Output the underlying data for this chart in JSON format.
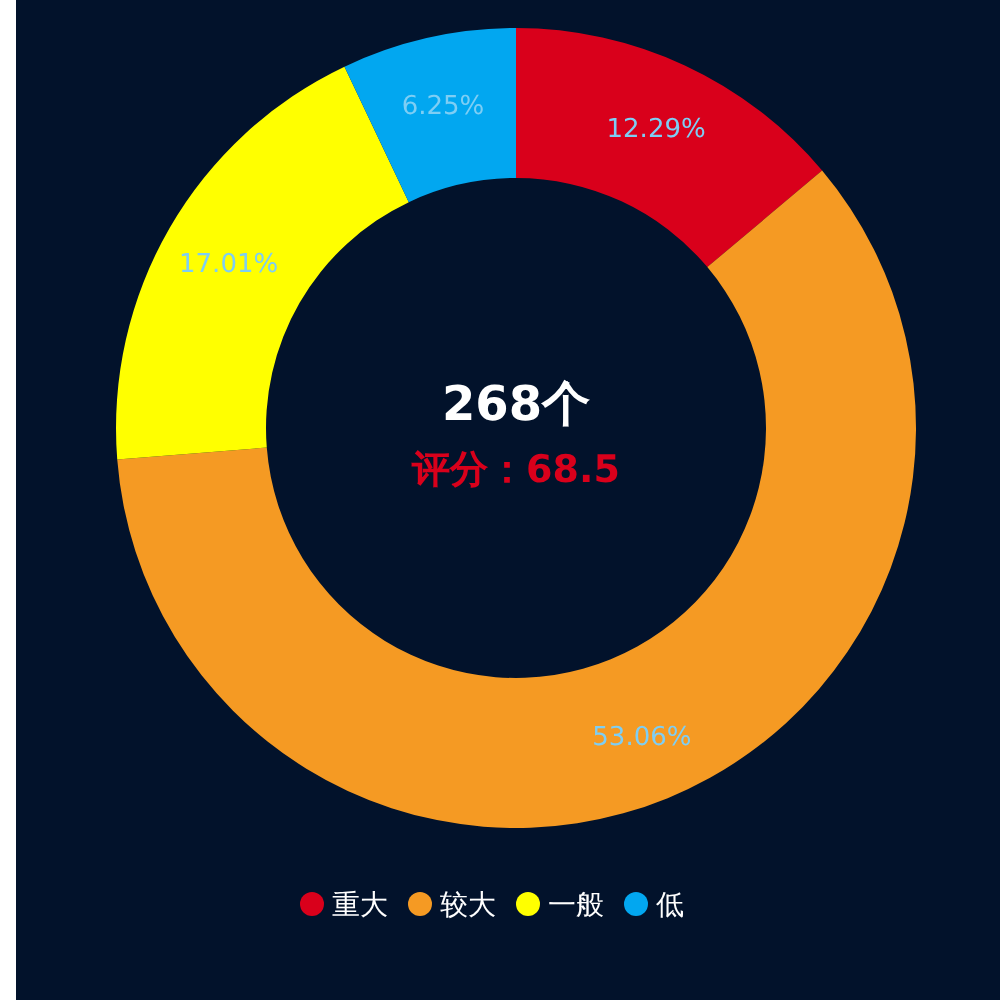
{
  "chart_data": {
    "type": "donut",
    "title": "268个",
    "subtitle": "评分：68.5",
    "categories": [
      "重大",
      "较大",
      "一般",
      "低"
    ],
    "values": [
      12.29,
      53.06,
      17.01,
      6.25
    ],
    "value_labels": [
      "12.29%",
      "53.06%",
      "17.01%",
      "6.25%"
    ],
    "colors": [
      "#d9001b",
      "#f59a23",
      "#ffff00",
      "#02a7f0"
    ],
    "legend": "bottom"
  }
}
